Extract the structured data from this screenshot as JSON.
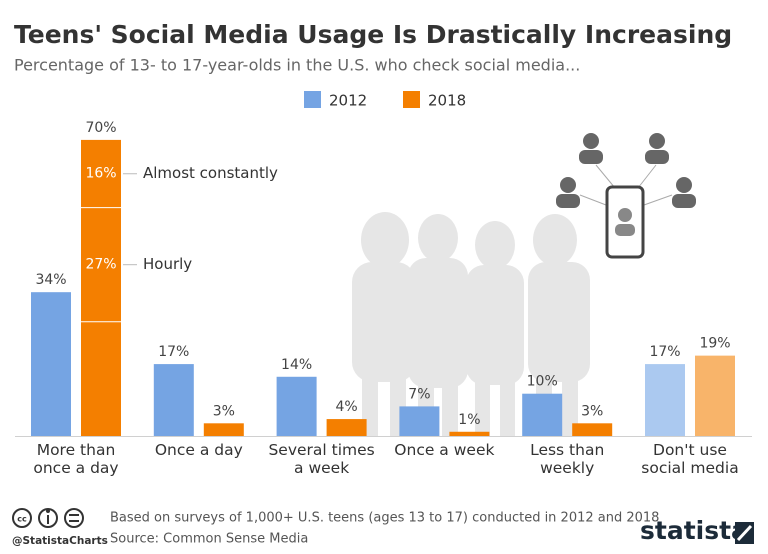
{
  "chart_data": {
    "type": "bar",
    "title": "Teens' Social Media Usage Is Drastically Increasing",
    "subtitle": "Percentage of 13- to 17-year-olds in the U.S. who check social media...",
    "categories": [
      "More than once a day",
      "Once a day",
      "Several times a week",
      "Once a week",
      "Less than weekly",
      "Don't use social media"
    ],
    "series": [
      {
        "name": "2012",
        "color": "#75a4e3",
        "colors": [
          "#75a4e3",
          "#75a4e3",
          "#75a4e3",
          "#75a4e3",
          "#75a4e3",
          "#abc9f0"
        ],
        "values": [
          34,
          17,
          14,
          7,
          10,
          17
        ],
        "value_labels": [
          "34%",
          "17%",
          "14%",
          "7%",
          "10%",
          "17%"
        ]
      },
      {
        "name": "2018",
        "color": "#f47f00",
        "colors": [
          "#f47f00",
          "#f47f00",
          "#f47f00",
          "#f47f00",
          "#f47f00",
          "#f8b46a"
        ],
        "values": [
          70,
          3,
          4,
          1,
          3,
          19
        ],
        "value_labels": [
          "70%",
          "3%",
          "4%",
          "1%",
          "3%",
          "19%"
        ],
        "first_value_breakdown": [
          {
            "name": "Almost constantly",
            "value": 16,
            "value_label": "16%"
          },
          {
            "name": "Hourly",
            "value": 27,
            "value_label": "27%"
          }
        ]
      }
    ],
    "footnote": "Based on surveys of 1,000+ U.S. teens (ages 13 to 17) conducted in 2012 and 2018",
    "source": "Source: Common Sense Media",
    "credit": "@StatistaCharts",
    "brand": "statista"
  }
}
